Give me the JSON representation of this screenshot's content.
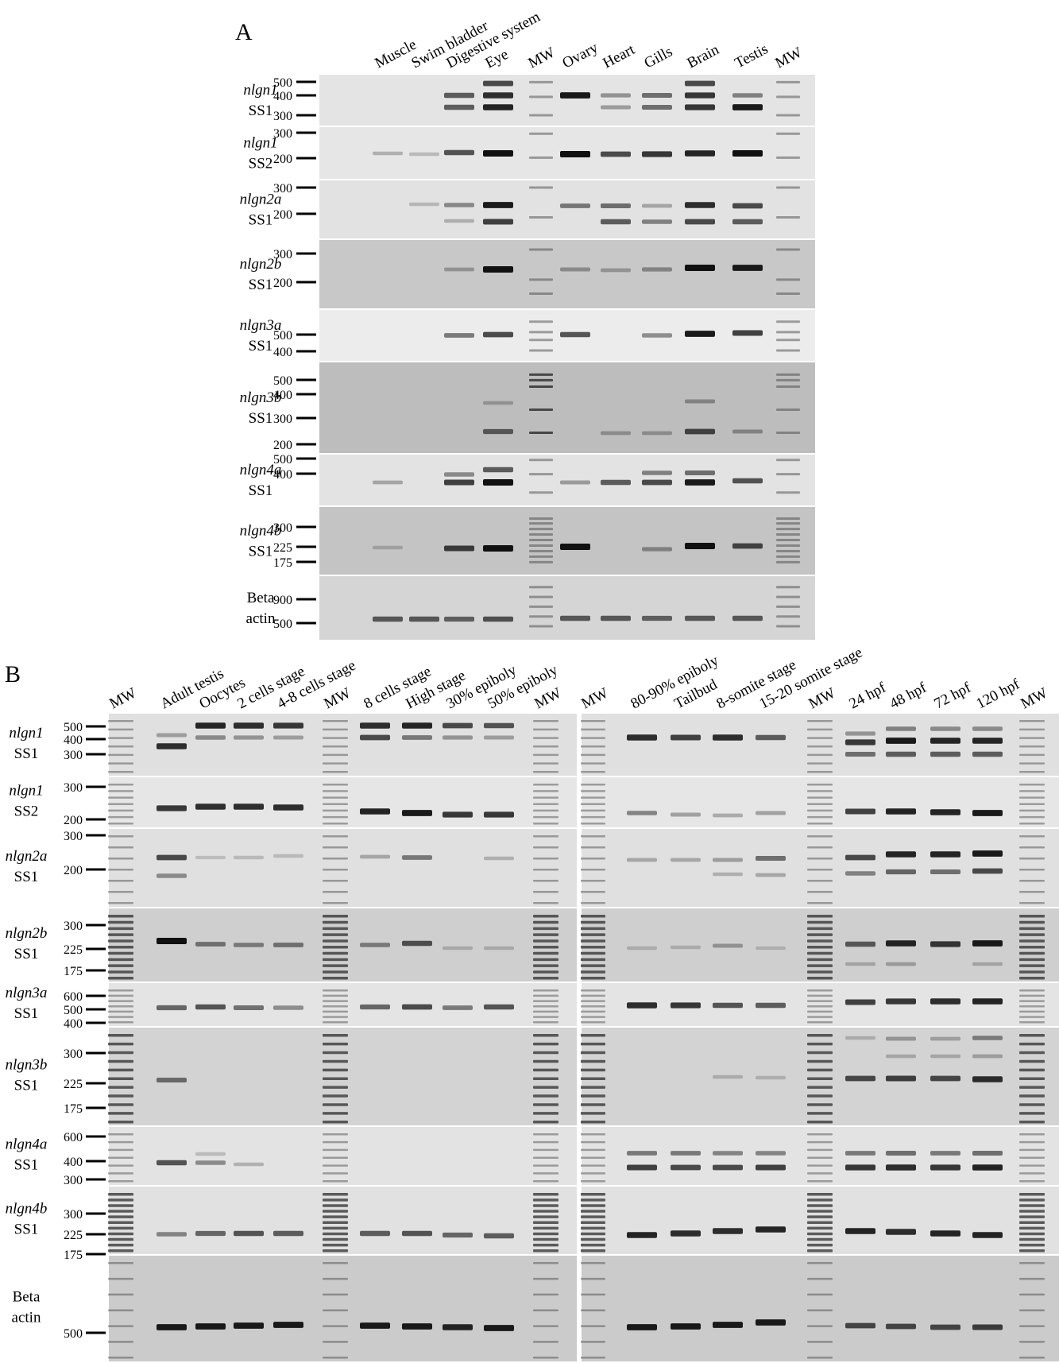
{
  "panel_a": {
    "letter": "A",
    "lanes": [
      "Muscle",
      "Swim bladder",
      "Digestive system",
      "Eye",
      "MW",
      "Ovary",
      "Heart",
      "Gills",
      "Brain",
      "Testis",
      "MW"
    ],
    "rows": [
      {
        "gene": "nlgn1",
        "variant": "SS1",
        "markers": [
          "500",
          "400",
          "300"
        ]
      },
      {
        "gene": "nlgn1",
        "variant": "SS2",
        "markers": [
          "300",
          "200"
        ]
      },
      {
        "gene": "nlgn2a",
        "variant": "SS1",
        "markers": [
          "300",
          "200"
        ]
      },
      {
        "gene": "nlgn2b",
        "variant": "SS1",
        "markers": [
          "300",
          "200"
        ]
      },
      {
        "gene": "nlgn3a",
        "variant": "SS1",
        "markers": [
          "500",
          "400"
        ]
      },
      {
        "gene": "nlgn3b",
        "variant": "SS1",
        "markers": [
          "500",
          "400",
          "300",
          "200"
        ]
      },
      {
        "gene": "nlgn4a",
        "variant": "SS1",
        "markers": [
          "500",
          "400"
        ]
      },
      {
        "gene": "nlgn4b",
        "variant": "SS1",
        "markers": [
          "300",
          "225",
          "175"
        ]
      },
      {
        "gene": "Beta",
        "variant": "actin",
        "markers": [
          "900",
          "500"
        ]
      }
    ]
  },
  "panel_b": {
    "letter": "B",
    "lanes": [
      "MW",
      "Adult testis",
      "Oocytes",
      "2 cells stage",
      "4-8 cells stage",
      "MW",
      "8 cells stage",
      "High stage",
      "30% epiboly",
      "50% epiboly",
      "MW",
      "MW",
      "80-90% epiboly",
      "Tailbud",
      "8-somite stage",
      "15-20 somite stage",
      "MW",
      "24 hpf",
      "48 hpf",
      "72 hpf",
      "120 hpf",
      "MW"
    ],
    "rows": [
      {
        "gene": "nlgn1",
        "variant": "SS1",
        "markers": [
          "500",
          "400",
          "300"
        ]
      },
      {
        "gene": "nlgn1",
        "variant": "SS2",
        "markers": [
          "300",
          "200"
        ]
      },
      {
        "gene": "nlgn2a",
        "variant": "SS1",
        "markers": [
          "300",
          "200"
        ]
      },
      {
        "gene": "nlgn2b",
        "variant": "SS1",
        "markers": [
          "300",
          "225",
          "175"
        ]
      },
      {
        "gene": "nlgn3a",
        "variant": "SS1",
        "markers": [
          "600",
          "500",
          "400"
        ]
      },
      {
        "gene": "nlgn3b",
        "variant": "SS1",
        "markers": [
          "300",
          "225",
          "175"
        ]
      },
      {
        "gene": "nlgn4a",
        "variant": "SS1",
        "markers": [
          "600",
          "400",
          "300"
        ]
      },
      {
        "gene": "nlgn4b",
        "variant": "SS1",
        "markers": [
          "300",
          "225",
          "175"
        ]
      },
      {
        "gene": "Beta",
        "variant": "actin",
        "markers": [
          "500"
        ]
      }
    ]
  },
  "colors": {
    "gel_bg": "#d9d9d9",
    "gel_dark": "#bcbcbc",
    "band": "#111111",
    "separator": "#ffffff"
  }
}
